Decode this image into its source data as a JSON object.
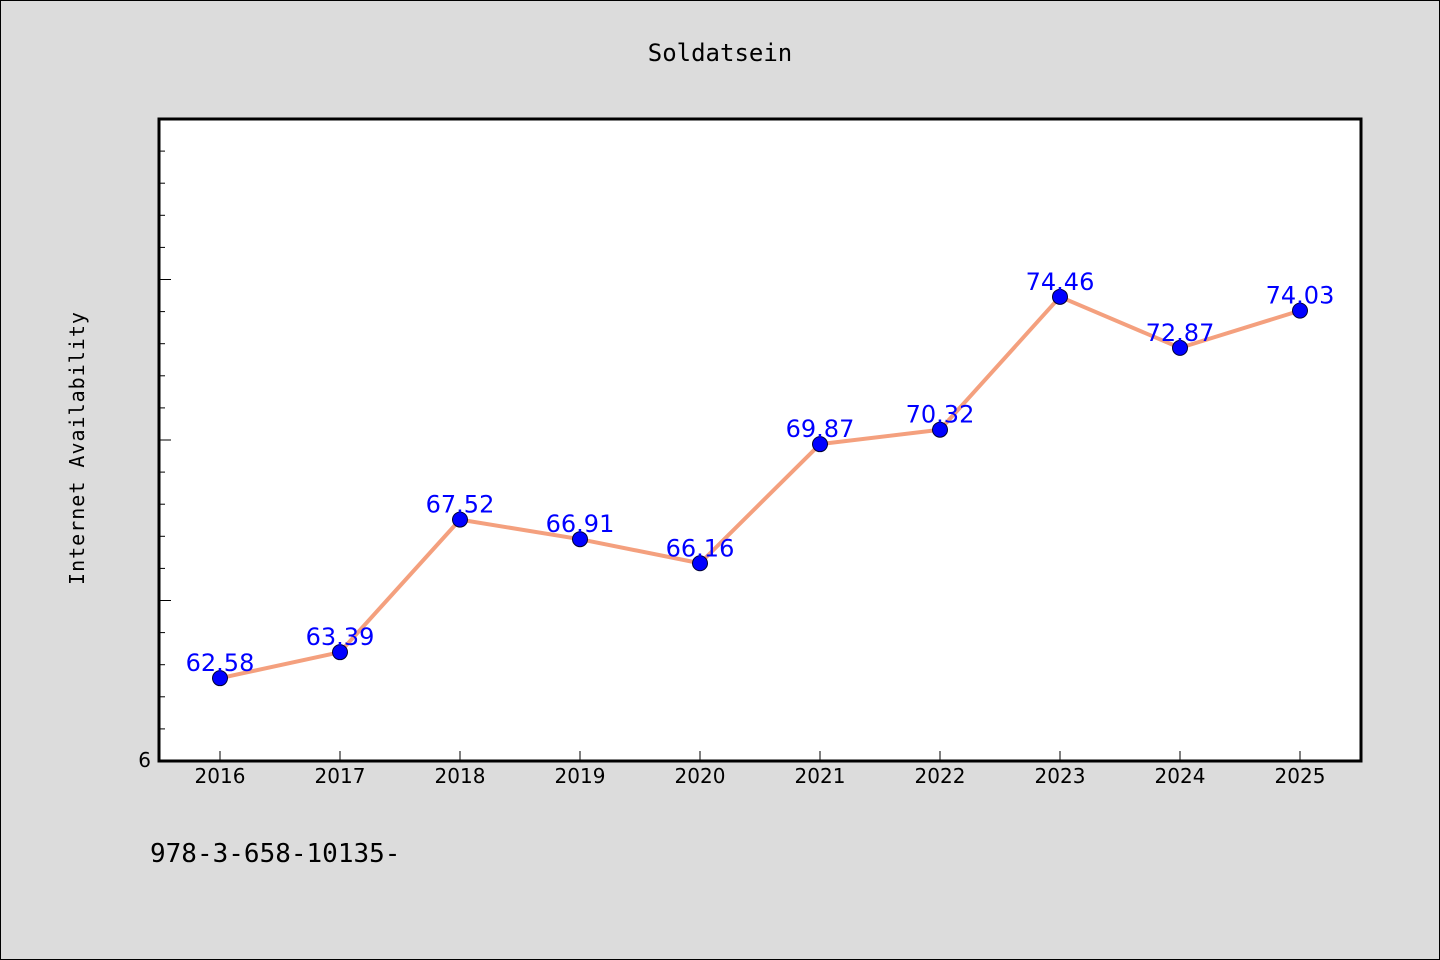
{
  "chart_data": {
    "type": "line",
    "title": "Soldatsein",
    "xlabel": "",
    "ylabel": "Internet Availability",
    "categories": [
      "2016",
      "2017",
      "2018",
      "2019",
      "2020",
      "2021",
      "2022",
      "2023",
      "2024",
      "2025"
    ],
    "series": [
      {
        "values": [
          62.58,
          63.39,
          67.52,
          66.91,
          66.16,
          69.87,
          70.32,
          74.46,
          72.87,
          74.03
        ]
      }
    ],
    "y_tick_labels": [
      "6"
    ],
    "ylim": [
      60,
      80
    ],
    "grid": false,
    "line_color": "#f4a07e",
    "marker_color": "#0000ff",
    "label_color": "#0000ff",
    "background_color": "#dcdcdc",
    "plot_background": "#ffffff"
  },
  "footer_text": "978-3-658-10135-"
}
